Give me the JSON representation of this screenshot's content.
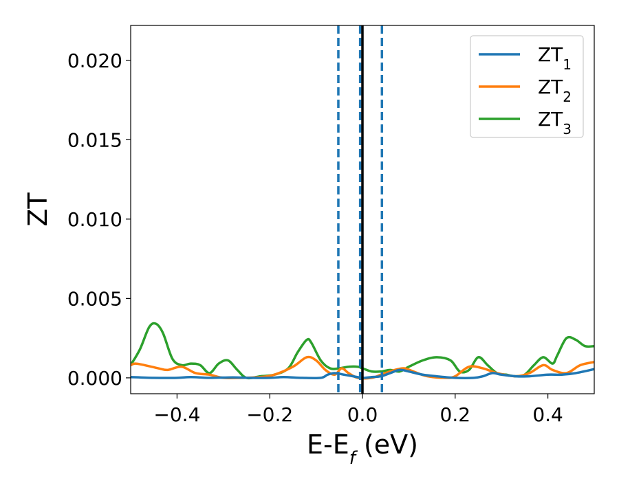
{
  "chart_data": {
    "type": "line",
    "xlabel": "E-E",
    "xlabel_sub": "f",
    "xlabel_unit": " (eV)",
    "ylabel": "ZT",
    "xlim": [
      -0.5,
      0.5
    ],
    "ylim": [
      -0.001,
      0.0222
    ],
    "xticks": [
      -0.4,
      -0.2,
      0.0,
      0.2,
      0.4
    ],
    "xtick_labels": [
      "−0.4",
      "−0.2",
      "0.0",
      "0.2",
      "0.4"
    ],
    "yticks": [
      0.0,
      0.005,
      0.01,
      0.015,
      0.02
    ],
    "ytick_labels": [
      "0.000",
      "0.005",
      "0.010",
      "0.015",
      "0.020"
    ],
    "grid": false,
    "legend_position": "top-right",
    "vertical_lines": [
      {
        "x": -0.052,
        "style": "dashed",
        "color": "#1f77b4"
      },
      {
        "x": -0.005,
        "style": "dashed",
        "color": "#1f77b4"
      },
      {
        "x": 0.042,
        "style": "dashed",
        "color": "#1f77b4"
      },
      {
        "x": 0.0,
        "style": "solid",
        "color": "#000000"
      }
    ],
    "series": [
      {
        "name": "ZT",
        "name_sub": "1",
        "color": "#1f77b4",
        "points": [
          [
            -0.5,
            5e-05
          ],
          [
            -0.45,
            0.0
          ],
          [
            -0.4,
            0.0
          ],
          [
            -0.37,
            5e-05
          ],
          [
            -0.33,
            0.0
          ],
          [
            -0.28,
            3e-05
          ],
          [
            -0.24,
            0.0
          ],
          [
            -0.2,
            0.0
          ],
          [
            -0.17,
            5e-05
          ],
          [
            -0.13,
            0.0
          ],
          [
            -0.09,
            0.0
          ],
          [
            -0.075,
            0.0002
          ],
          [
            -0.06,
            0.0003
          ],
          [
            -0.04,
            0.0002
          ],
          [
            -0.02,
            0.0001
          ],
          [
            0.0,
            0.0
          ],
          [
            0.02,
            5e-05
          ],
          [
            0.04,
            0.0001
          ],
          [
            0.06,
            0.0003
          ],
          [
            0.08,
            0.0005
          ],
          [
            0.1,
            0.0004
          ],
          [
            0.13,
            0.0002
          ],
          [
            0.16,
            0.0001
          ],
          [
            0.2,
            0.0
          ],
          [
            0.24,
            0.0
          ],
          [
            0.26,
            0.0001
          ],
          [
            0.28,
            0.0003
          ],
          [
            0.3,
            0.0002
          ],
          [
            0.33,
            0.0001
          ],
          [
            0.36,
            0.0001
          ],
          [
            0.4,
            0.0002
          ],
          [
            0.43,
            0.0002
          ],
          [
            0.46,
            0.0003
          ],
          [
            0.5,
            0.00055
          ]
        ]
      },
      {
        "name": "ZT",
        "name_sub": "2",
        "color": "#ff7f0e",
        "points": [
          [
            -0.5,
            0.0008
          ],
          [
            -0.49,
            0.0009
          ],
          [
            -0.47,
            0.0008
          ],
          [
            -0.44,
            0.0006
          ],
          [
            -0.42,
            0.0005
          ],
          [
            -0.39,
            0.0007
          ],
          [
            -0.36,
            0.0003
          ],
          [
            -0.33,
            0.0002
          ],
          [
            -0.3,
            0.0
          ],
          [
            -0.26,
            0.0
          ],
          [
            -0.22,
            5e-05
          ],
          [
            -0.19,
            0.0002
          ],
          [
            -0.15,
            0.0007
          ],
          [
            -0.12,
            0.0013
          ],
          [
            -0.1,
            0.0011
          ],
          [
            -0.08,
            0.0005
          ],
          [
            -0.06,
            0.0002
          ],
          [
            -0.045,
            0.0006
          ],
          [
            -0.03,
            0.0003
          ],
          [
            -0.01,
            0.0
          ],
          [
            0.02,
            0.0
          ],
          [
            0.04,
            0.0002
          ],
          [
            0.07,
            0.0005
          ],
          [
            0.09,
            0.0006
          ],
          [
            0.11,
            0.0004
          ],
          [
            0.14,
            0.0001
          ],
          [
            0.18,
            0.0
          ],
          [
            0.2,
            0.0001
          ],
          [
            0.23,
            0.0007
          ],
          [
            0.26,
            0.0006
          ],
          [
            0.29,
            0.0003
          ],
          [
            0.33,
            0.0001
          ],
          [
            0.36,
            0.0003
          ],
          [
            0.39,
            0.0008
          ],
          [
            0.41,
            0.0005
          ],
          [
            0.44,
            0.0003
          ],
          [
            0.47,
            0.0008
          ],
          [
            0.5,
            0.001
          ]
        ]
      },
      {
        "name": "ZT",
        "name_sub": "3",
        "color": "#2ca02c",
        "points": [
          [
            -0.5,
            0.0008
          ],
          [
            -0.48,
            0.0018
          ],
          [
            -0.46,
            0.0032
          ],
          [
            -0.445,
            0.0034
          ],
          [
            -0.43,
            0.0028
          ],
          [
            -0.41,
            0.0012
          ],
          [
            -0.39,
            0.0008
          ],
          [
            -0.37,
            0.0009
          ],
          [
            -0.35,
            0.0008
          ],
          [
            -0.33,
            0.0003
          ],
          [
            -0.31,
            0.0009
          ],
          [
            -0.29,
            0.0011
          ],
          [
            -0.27,
            0.0005
          ],
          [
            -0.25,
            0.0
          ],
          [
            -0.22,
            0.0001
          ],
          [
            -0.19,
            0.0002
          ],
          [
            -0.16,
            0.0006
          ],
          [
            -0.14,
            0.0016
          ],
          [
            -0.12,
            0.0024
          ],
          [
            -0.11,
            0.0022
          ],
          [
            -0.09,
            0.0011
          ],
          [
            -0.07,
            0.0006
          ],
          [
            -0.05,
            0.0006
          ],
          [
            -0.03,
            0.0007
          ],
          [
            -0.01,
            0.0007
          ],
          [
            0.0,
            0.0006
          ],
          [
            0.02,
            0.0004
          ],
          [
            0.04,
            0.0004
          ],
          [
            0.06,
            0.0005
          ],
          [
            0.08,
            0.0004
          ],
          [
            0.1,
            0.0007
          ],
          [
            0.13,
            0.0011
          ],
          [
            0.16,
            0.0013
          ],
          [
            0.19,
            0.0011
          ],
          [
            0.21,
            0.0004
          ],
          [
            0.23,
            0.0005
          ],
          [
            0.25,
            0.0013
          ],
          [
            0.27,
            0.0008
          ],
          [
            0.29,
            0.0003
          ],
          [
            0.31,
            0.0002
          ],
          [
            0.33,
            0.0001
          ],
          [
            0.35,
            0.0002
          ],
          [
            0.37,
            0.0008
          ],
          [
            0.39,
            0.0013
          ],
          [
            0.41,
            0.0009
          ],
          [
            0.42,
            0.0014
          ],
          [
            0.44,
            0.0025
          ],
          [
            0.46,
            0.0024
          ],
          [
            0.48,
            0.002
          ],
          [
            0.5,
            0.002
          ]
        ]
      }
    ]
  }
}
